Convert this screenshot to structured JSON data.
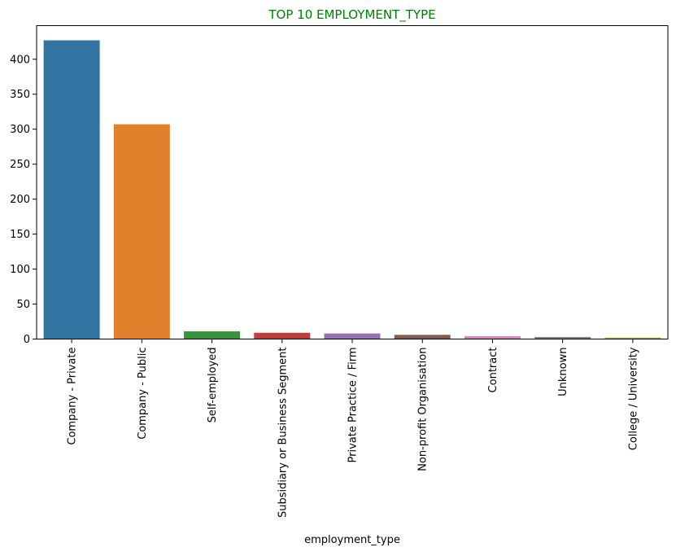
{
  "chart_data": {
    "type": "bar",
    "title": "TOP 10 EMPLOYMENT_TYPE",
    "title_color": "#008000",
    "xlabel": "employment_type",
    "ylabel": "",
    "categories": [
      "Company - Private",
      "Company - Public",
      "Self-employed",
      "Subsidiary or Business Segment",
      "Private Practice / Firm",
      "Non-profit Organisation",
      "Contract",
      "Unknown",
      "College / University"
    ],
    "values": [
      427,
      307,
      11,
      9,
      8,
      6,
      4,
      3,
      2
    ],
    "colors": [
      "#3274a1",
      "#e1812c",
      "#3a923a",
      "#c03d3e",
      "#9372b2",
      "#845b53",
      "#d684bd",
      "#7f7f7f",
      "#a9aa35"
    ],
    "ylim": [
      0,
      448
    ],
    "yticks": [
      0,
      50,
      100,
      150,
      200,
      250,
      300,
      350,
      400
    ],
    "grid": false,
    "legend": "none"
  }
}
